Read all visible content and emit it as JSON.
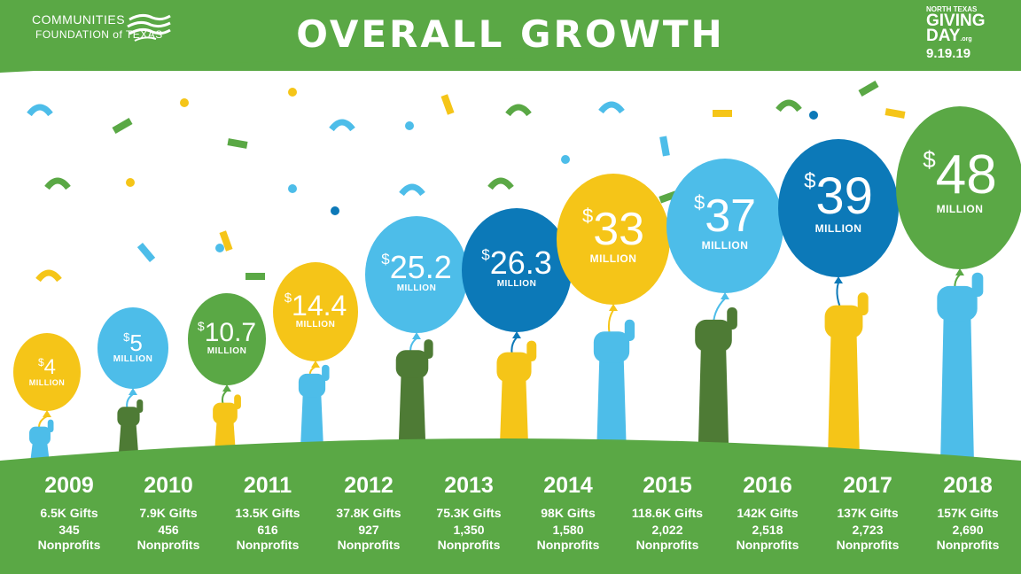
{
  "header": {
    "title": "OVERALL GROWTH",
    "logo_left": {
      "line1": "COMMUNITIES",
      "line2": "FOUNDATION of TEXAS"
    },
    "logo_right": {
      "line1": "NORTH TEXAS",
      "line2": "GIVING",
      "line3": "DAY",
      "line3_suffix": ".org",
      "line4": "9.19.19"
    }
  },
  "colors": {
    "green": "#5aa845",
    "dark_green": "#4e7b35",
    "yellow": "#f5c518",
    "light_blue": "#4dbde9",
    "dark_blue": "#0c79b8",
    "white": "#ffffff"
  },
  "years": [
    {
      "year": "2009",
      "gifts": "6.5K Gifts",
      "nonprofits": "345",
      "np_label": "Nonprofits",
      "amount": "4",
      "currency": "$",
      "unit": "MILLION",
      "balloon_color": "yellow",
      "hand_color": "light_blue"
    },
    {
      "year": "2010",
      "gifts": "7.9K Gifts",
      "nonprofits": "456",
      "np_label": "Nonprofits",
      "amount": "5",
      "currency": "$",
      "unit": "MILLION",
      "balloon_color": "light_blue",
      "hand_color": "dark_green"
    },
    {
      "year": "2011",
      "gifts": "13.5K Gifts",
      "nonprofits": "616",
      "np_label": "Nonprofits",
      "amount": "10.7",
      "currency": "$",
      "unit": "MILLION",
      "balloon_color": "green",
      "hand_color": "yellow"
    },
    {
      "year": "2012",
      "gifts": "37.8K Gifts",
      "nonprofits": "927",
      "np_label": "Nonprofits",
      "amount": "14.4",
      "currency": "$",
      "unit": "MILLION",
      "balloon_color": "yellow",
      "hand_color": "light_blue"
    },
    {
      "year": "2013",
      "gifts": "75.3K Gifts",
      "nonprofits": "1,350",
      "np_label": "Nonprofits",
      "amount": "25.2",
      "currency": "$",
      "unit": "MILLION",
      "balloon_color": "light_blue",
      "hand_color": "dark_green"
    },
    {
      "year": "2014",
      "gifts": "98K  Gifts",
      "nonprofits": "1,580",
      "np_label": "Nonprofits",
      "amount": "26.3",
      "currency": "$",
      "unit": "MILLION",
      "balloon_color": "dark_blue",
      "hand_color": "yellow"
    },
    {
      "year": "2015",
      "gifts": "118.6K Gifts",
      "nonprofits": "2,022",
      "np_label": "Nonprofits",
      "amount": "33",
      "currency": "$",
      "unit": "MILLION",
      "balloon_color": "yellow",
      "hand_color": "light_blue"
    },
    {
      "year": "2016",
      "gifts": "142K Gifts",
      "nonprofits": "2,518",
      "np_label": "Nonprofits",
      "amount": "37",
      "currency": "$",
      "unit": "MILLION",
      "balloon_color": "light_blue",
      "hand_color": "dark_green"
    },
    {
      "year": "2017",
      "gifts": "137K Gifts",
      "nonprofits": "2,723",
      "np_label": "Nonprofits",
      "amount": "39",
      "currency": "$",
      "unit": "MILLION",
      "balloon_color": "dark_blue",
      "hand_color": "yellow"
    },
    {
      "year": "2018",
      "gifts": "157K Gifts",
      "nonprofits": "2,690",
      "np_label": "Nonprofits",
      "amount": "48",
      "currency": "$",
      "unit": "MILLION",
      "balloon_color": "green",
      "hand_color": "light_blue"
    }
  ]
}
